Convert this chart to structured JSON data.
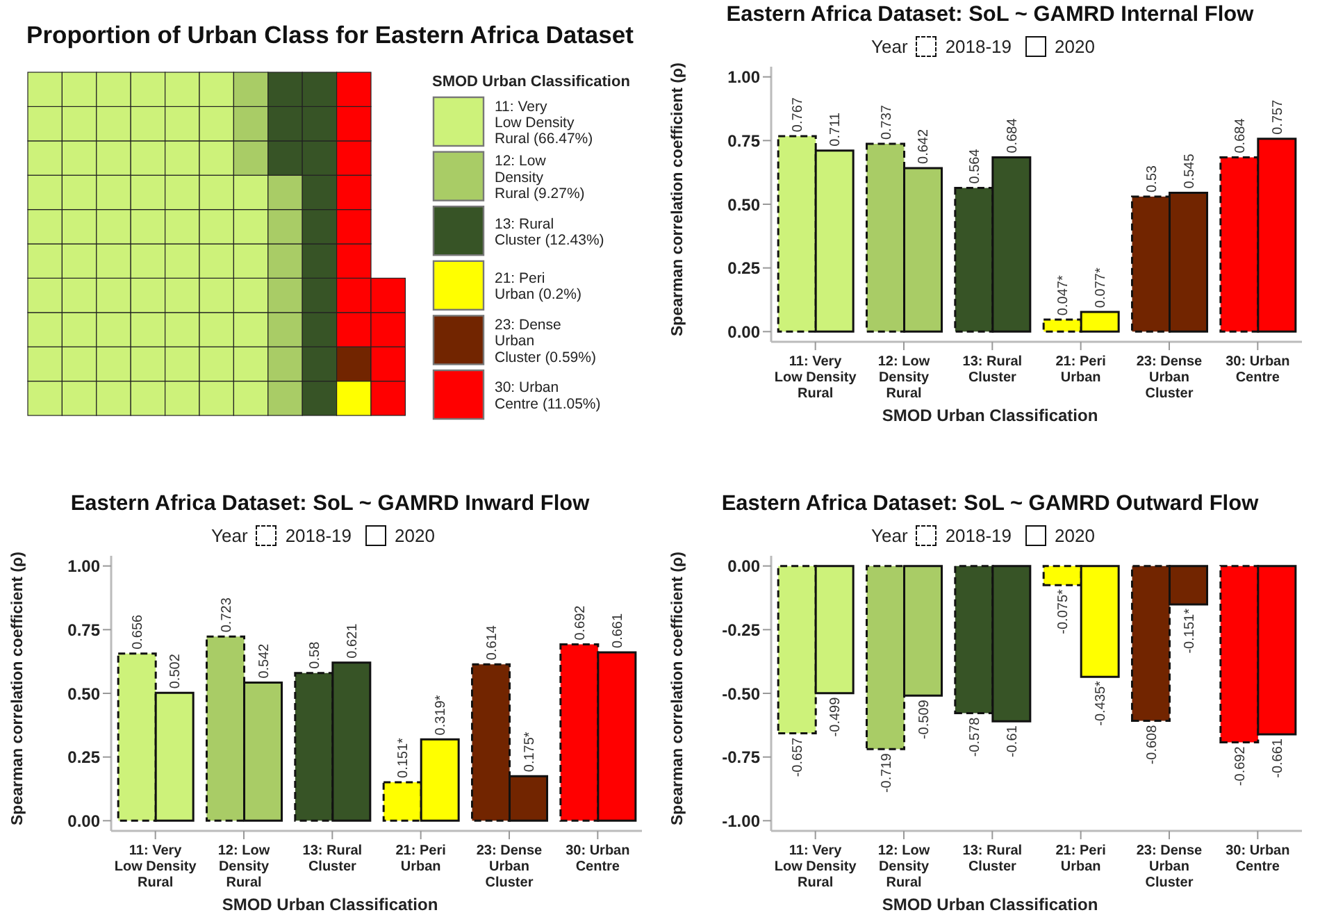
{
  "chart_data": [
    {
      "type": "other",
      "title": "Proportion of Urban Class for Eastern Africa Dataset",
      "legend_title": "SMOD Urban Classification",
      "categories": [
        "11: Very Low Density Rural",
        "12: Low Density Rural",
        "13: Rural Cluster",
        "21: Peri Urban",
        "23: Dense Urban Cluster",
        "30: Urban Centre"
      ],
      "values": [
        66.47,
        9.27,
        12.43,
        0.2,
        0.59,
        11.05
      ],
      "value_labels": [
        "(66.47%)",
        "(9.27%)",
        "(12.43%)",
        "(0.2%)",
        "(0.59%)",
        "(11.05%)"
      ],
      "colors": [
        "#cdf27a",
        "#a9cc66",
        "#375426",
        "#ffff00",
        "#722500",
        "#ff0000"
      ]
    },
    {
      "type": "bar",
      "title": "Eastern Africa Dataset: SoL ~ GAMRD Internal Flow",
      "xlabel": "SMOD Urban Classification",
      "ylabel": "Spearman correlation coefficient  (ρ)",
      "legend_title": "Year",
      "legend": "top",
      "categories": [
        "11: Very Low Density Rural",
        "12: Low Density Rural",
        "13: Rural Cluster",
        "21: Peri Urban",
        "23: Dense Urban Cluster",
        "30: Urban Centre"
      ],
      "ylim": [
        -0.04,
        1.04
      ],
      "yticks": [
        {
          "value": 0,
          "label": "0.00"
        },
        {
          "value": 0.25,
          "label": "0.25"
        },
        {
          "value": 0.5,
          "label": "0.50"
        },
        {
          "value": 0.75,
          "label": "0.75"
        },
        {
          "value": 1,
          "label": "1.00"
        }
      ],
      "series": [
        {
          "name": "2018-19",
          "line_style": "dashed",
          "colors": [
            "#cdf27a",
            "#a9cc66",
            "#375426",
            "#ffff00",
            "#722500",
            "#ff0000"
          ],
          "values": [
            0.767,
            0.737,
            0.564,
            0.047,
            0.53,
            0.684
          ],
          "value_labels": [
            "0.767",
            "0.737",
            "0.564",
            "0.047*",
            "0.53",
            "0.684"
          ]
        },
        {
          "name": "2020",
          "line_style": "solid",
          "colors": [
            "#cdf27a",
            "#a9cc66",
            "#375426",
            "#ffff00",
            "#722500",
            "#ff0000"
          ],
          "values": [
            0.711,
            0.642,
            0.684,
            0.077,
            0.545,
            0.757
          ],
          "value_labels": [
            "0.711",
            "0.642",
            "0.684",
            "0.077*",
            "0.545",
            "0.757"
          ]
        }
      ]
    },
    {
      "type": "bar",
      "title": "Eastern Africa Dataset: SoL ~ GAMRD Inward Flow",
      "xlabel": "SMOD Urban Classification",
      "ylabel": "Spearman correlation coefficient  (ρ)",
      "legend_title": "Year",
      "legend": "top",
      "categories": [
        "11: Very Low Density Rural",
        "12: Low Density Rural",
        "13: Rural Cluster",
        "21: Peri Urban",
        "23: Dense Urban Cluster",
        "30: Urban Centre"
      ],
      "ylim": [
        -0.04,
        1.04
      ],
      "yticks": [
        {
          "value": 0,
          "label": "0.00"
        },
        {
          "value": 0.25,
          "label": "0.25"
        },
        {
          "value": 0.5,
          "label": "0.50"
        },
        {
          "value": 0.75,
          "label": "0.75"
        },
        {
          "value": 1,
          "label": "1.00"
        }
      ],
      "series": [
        {
          "name": "2018-19",
          "line_style": "dashed",
          "colors": [
            "#cdf27a",
            "#a9cc66",
            "#375426",
            "#ffff00",
            "#722500",
            "#ff0000"
          ],
          "values": [
            0.656,
            0.723,
            0.58,
            0.151,
            0.614,
            0.692
          ],
          "value_labels": [
            "0.656",
            "0.723",
            "0.58",
            "0.151*",
            "0.614",
            "0.692"
          ]
        },
        {
          "name": "2020",
          "line_style": "solid",
          "colors": [
            "#cdf27a",
            "#a9cc66",
            "#375426",
            "#ffff00",
            "#722500",
            "#ff0000"
          ],
          "values": [
            0.502,
            0.542,
            0.621,
            0.319,
            0.175,
            0.661
          ],
          "value_labels": [
            "0.502",
            "0.542",
            "0.621",
            "0.319*",
            "0.175*",
            "0.661"
          ]
        }
      ]
    },
    {
      "type": "bar",
      "title": "Eastern Africa Dataset: SoL ~ GAMRD Outward Flow",
      "xlabel": "SMOD Urban Classification",
      "ylabel": "Spearman correlation coefficient  (ρ)",
      "legend_title": "Year",
      "legend": "top",
      "categories": [
        "11: Very Low Density Rural",
        "12: Low Density Rural",
        "13: Rural Cluster",
        "21: Peri Urban",
        "23: Dense Urban Cluster",
        "30: Urban Centre"
      ],
      "ylim": [
        -1.04,
        0.04
      ],
      "yticks": [
        {
          "value": -1,
          "label": "-1.00"
        },
        {
          "value": -0.75,
          "label": "-0.75"
        },
        {
          "value": -0.5,
          "label": "-0.50"
        },
        {
          "value": -0.25,
          "label": "-0.25"
        },
        {
          "value": 0,
          "label": "0.00"
        }
      ],
      "series": [
        {
          "name": "2018-19",
          "line_style": "dashed",
          "colors": [
            "#cdf27a",
            "#a9cc66",
            "#375426",
            "#ffff00",
            "#722500",
            "#ff0000"
          ],
          "values": [
            -0.657,
            -0.719,
            -0.578,
            -0.075,
            -0.608,
            -0.692
          ],
          "value_labels": [
            "-0.657",
            "-0.719",
            "-0.578",
            "-0.075*",
            "-0.608",
            "-0.692"
          ]
        },
        {
          "name": "2020",
          "line_style": "solid",
          "colors": [
            "#cdf27a",
            "#a9cc66",
            "#375426",
            "#ffff00",
            "#722500",
            "#ff0000"
          ],
          "values": [
            -0.499,
            -0.509,
            -0.61,
            -0.435,
            -0.151,
            -0.661
          ],
          "value_labels": [
            "-0.499",
            "-0.509",
            "-0.61",
            "-0.435*",
            "-0.151*",
            "-0.661"
          ]
        }
      ]
    }
  ]
}
